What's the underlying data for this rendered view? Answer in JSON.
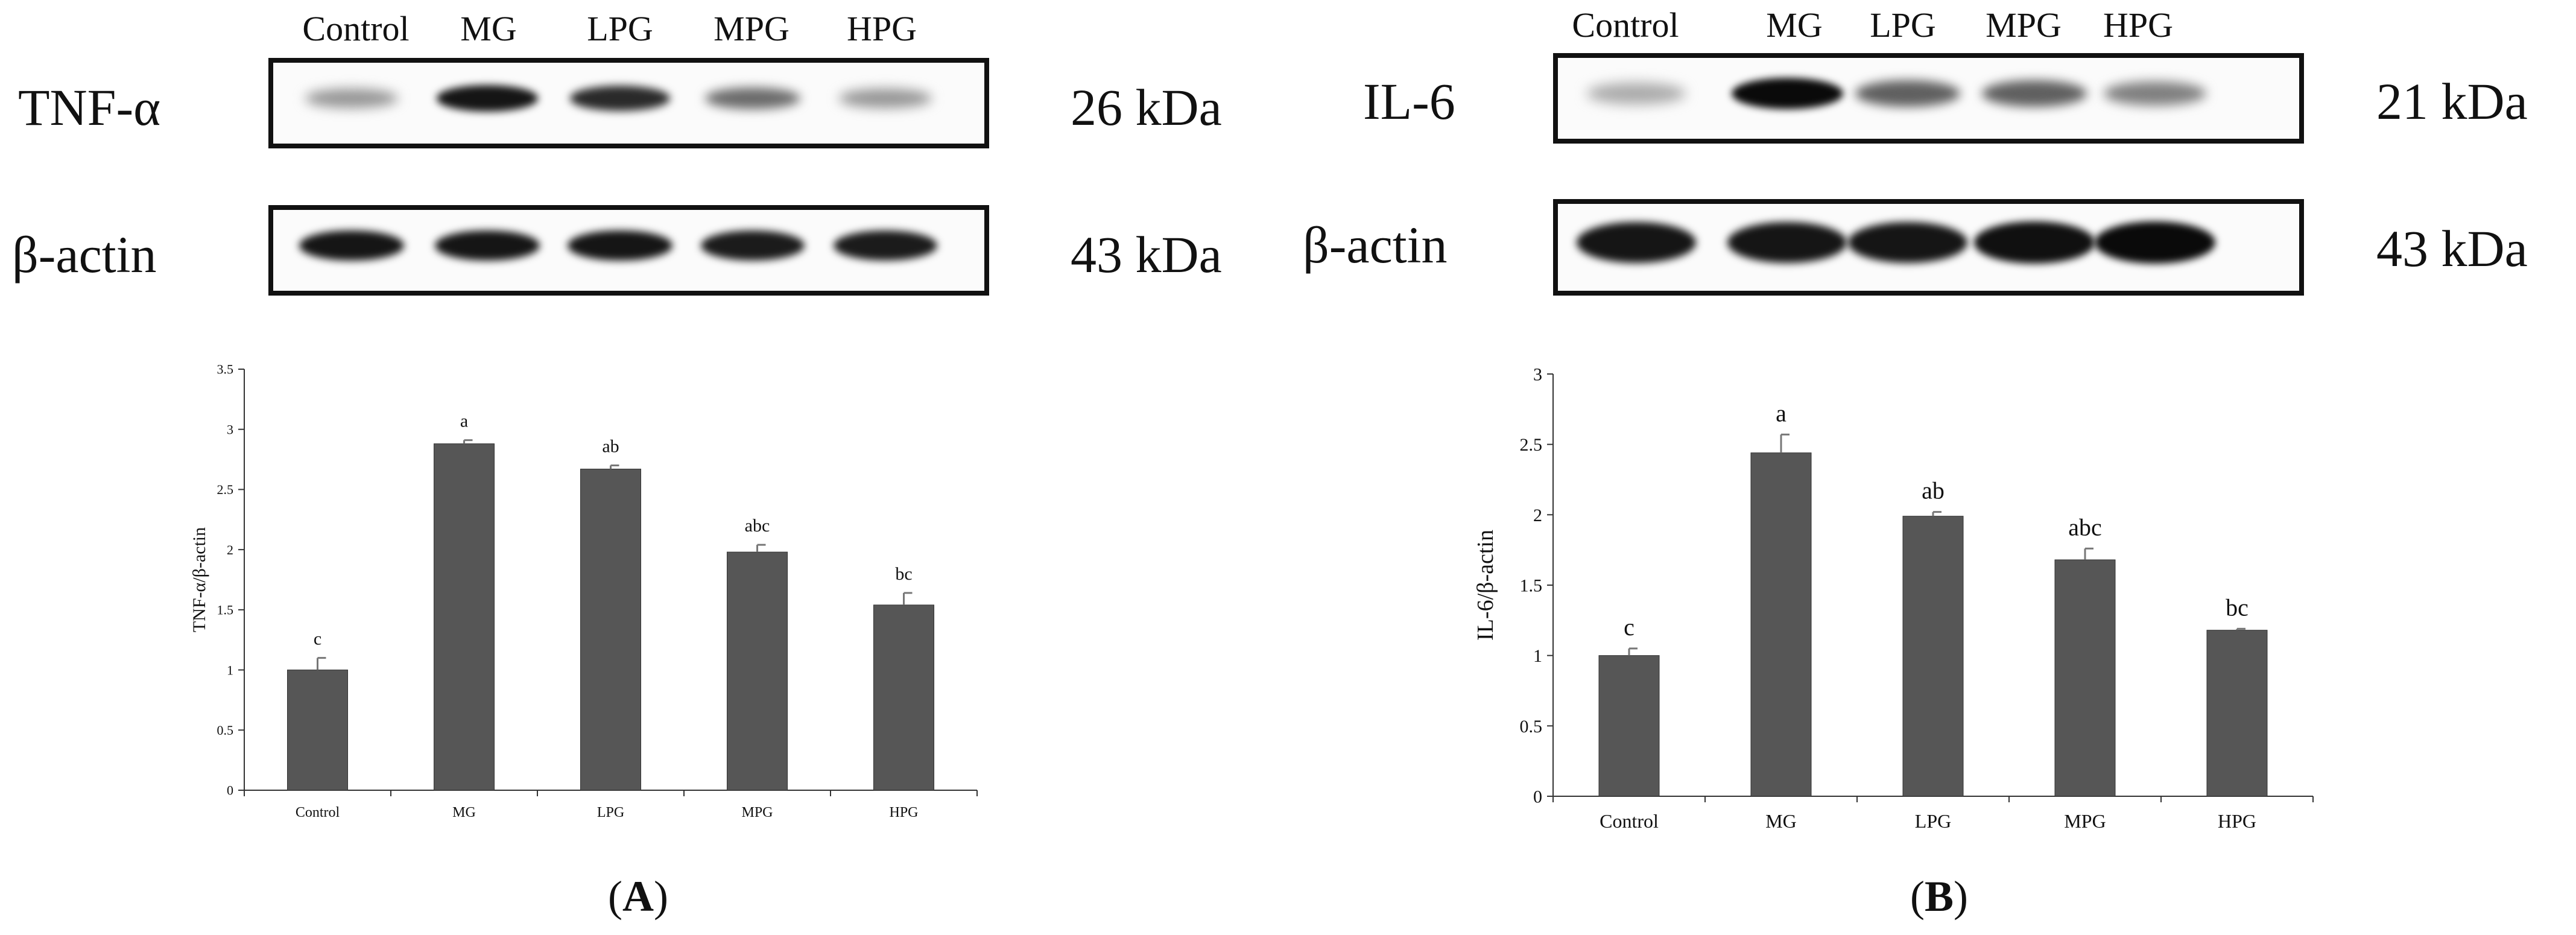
{
  "panels": {
    "A": {
      "label": "A",
      "lanes": [
        "Control",
        "MG",
        "LPG",
        "MPG",
        "HPG"
      ],
      "blot_top": {
        "protein": "TNF-α",
        "kda": "26 kDa",
        "intensity": [
          0.35,
          0.95,
          0.85,
          0.55,
          0.35
        ]
      },
      "blot_bottom": {
        "protein": "β-actin",
        "kda": "43 kDa",
        "intensity": [
          0.95,
          0.95,
          0.95,
          0.92,
          0.92
        ]
      }
    },
    "B": {
      "label": "B",
      "lanes": [
        "Control",
        "MG",
        "LPG",
        "MPG",
        "HPG"
      ],
      "blot_top": {
        "protein": "IL-6",
        "kda": "21 kDa",
        "intensity": [
          0.25,
          1.0,
          0.6,
          0.6,
          0.45
        ]
      },
      "blot_bottom": {
        "protein": "β-actin",
        "kda": "43 kDa",
        "intensity": [
          0.95,
          0.95,
          0.95,
          0.97,
          1.0
        ]
      }
    }
  },
  "chart_data": [
    {
      "type": "bar",
      "panel": "A",
      "categories": [
        "Control",
        "MG",
        "LPG",
        "MPG",
        "HPG"
      ],
      "values": [
        1.0,
        2.88,
        2.67,
        1.98,
        1.54
      ],
      "errors": [
        0.1,
        0.03,
        0.03,
        0.06,
        0.1
      ],
      "significance": [
        "c",
        "a",
        "ab",
        "abc",
        "bc"
      ],
      "title": "",
      "xlabel": "",
      "ylabel": "TNF-α/β-actin",
      "ylim": [
        0,
        3.5
      ],
      "yticks": [
        "0",
        "0.5",
        "1",
        "1.5",
        "2",
        "2.5",
        "3",
        "3.5"
      ],
      "bar_color": "#565656",
      "grid": false
    },
    {
      "type": "bar",
      "panel": "B",
      "categories": [
        "Control",
        "MG",
        "LPG",
        "MPG",
        "HPG"
      ],
      "values": [
        1.0,
        2.44,
        1.99,
        1.68,
        1.18
      ],
      "errors": [
        0.05,
        0.13,
        0.03,
        0.08,
        0.01
      ],
      "significance": [
        "c",
        "a",
        "ab",
        "abc",
        "bc"
      ],
      "title": "",
      "xlabel": "",
      "ylabel": "IL-6/β-actin",
      "ylim": [
        0,
        3
      ],
      "yticks": [
        "0",
        "0.5",
        "1",
        "1.5",
        "2",
        "2.5",
        "3"
      ],
      "bar_color": "#565656",
      "grid": false
    }
  ]
}
